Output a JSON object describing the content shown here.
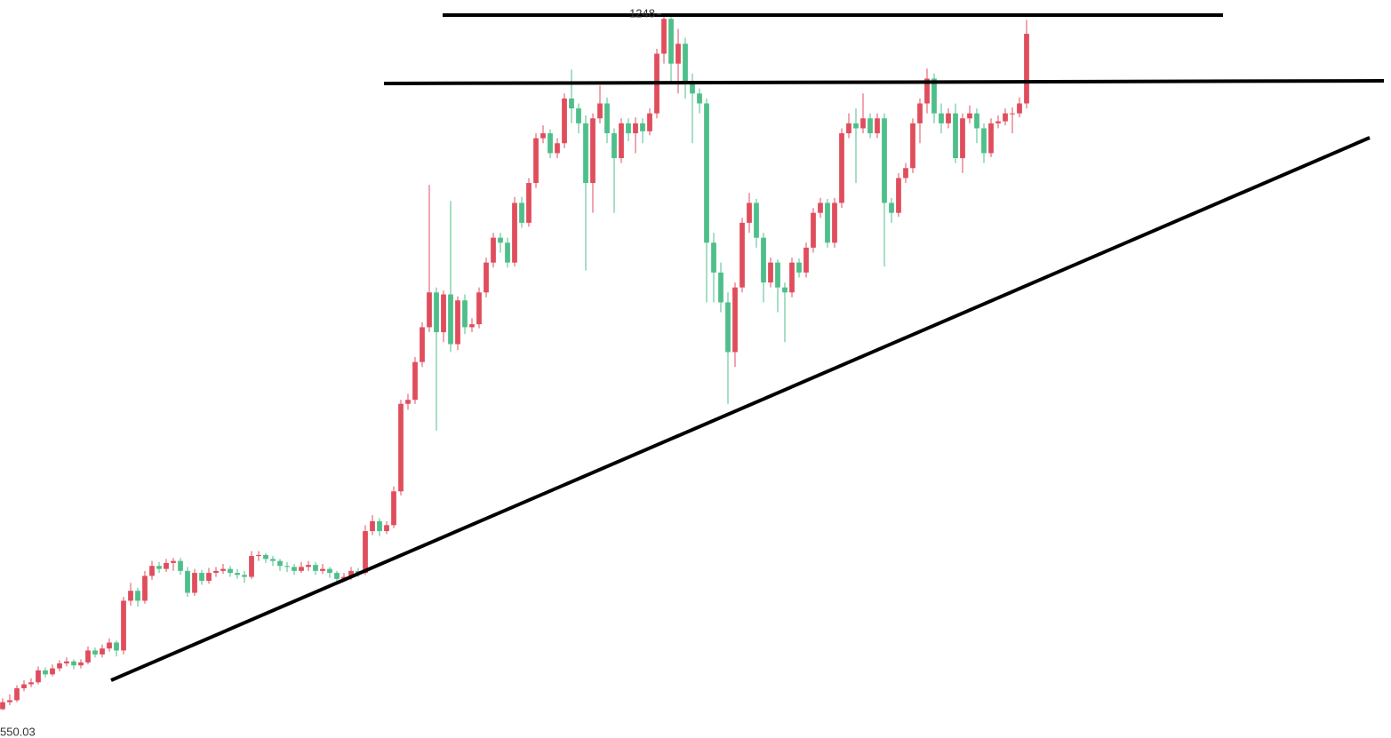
{
  "chart_data": {
    "type": "candlestick",
    "up_color": "#e04d5c",
    "down_color": "#4ebf8a",
    "ylim": [
      522,
      1264
    ],
    "high_label": 1248,
    "low_label": 550.03,
    "candles": [
      [
        551,
        562,
        550.03,
        558
      ],
      [
        558,
        566,
        555,
        560
      ],
      [
        560,
        575,
        558,
        572
      ],
      [
        572,
        580,
        569,
        576
      ],
      [
        576,
        582,
        573,
        578
      ],
      [
        578,
        594,
        576,
        590
      ],
      [
        590,
        593,
        583,
        586
      ],
      [
        586,
        596,
        584,
        592
      ],
      [
        592,
        600,
        589,
        597
      ],
      [
        597,
        603,
        594,
        599
      ],
      [
        599,
        601,
        591,
        595
      ],
      [
        595,
        601,
        592,
        598
      ],
      [
        598,
        614,
        596,
        610
      ],
      [
        610,
        613,
        603,
        606
      ],
      [
        606,
        616,
        603,
        612
      ],
      [
        612,
        622,
        609,
        618
      ],
      [
        618,
        620,
        604,
        610
      ],
      [
        610,
        664,
        606,
        660
      ],
      [
        660,
        678,
        655,
        670
      ],
      [
        670,
        673,
        654,
        660
      ],
      [
        660,
        690,
        657,
        685
      ],
      [
        685,
        700,
        681,
        695
      ],
      [
        695,
        699,
        688,
        692
      ],
      [
        692,
        702,
        689,
        698
      ],
      [
        698,
        703,
        690,
        700
      ],
      [
        700,
        703,
        686,
        690
      ],
      [
        690,
        694,
        664,
        668
      ],
      [
        668,
        692,
        665,
        688
      ],
      [
        688,
        691,
        676,
        680
      ],
      [
        680,
        693,
        677,
        688
      ],
      [
        688,
        694,
        684,
        690
      ],
      [
        690,
        697,
        687,
        692
      ],
      [
        692,
        695,
        684,
        688
      ],
      [
        688,
        692,
        682,
        686
      ],
      [
        686,
        690,
        678,
        684
      ],
      [
        684,
        710,
        682,
        705
      ],
      [
        705,
        710,
        700,
        706
      ],
      [
        706,
        708,
        698,
        702
      ],
      [
        702,
        705,
        695,
        700
      ],
      [
        700,
        702,
        690,
        695
      ],
      [
        695,
        699,
        689,
        694
      ],
      [
        694,
        697,
        686,
        690
      ],
      [
        690,
        699,
        688,
        694
      ],
      [
        694,
        700,
        690,
        696
      ],
      [
        696,
        699,
        686,
        690
      ],
      [
        690,
        697,
        687,
        692
      ],
      [
        692,
        694,
        683,
        688
      ],
      [
        688,
        690,
        676,
        682
      ],
      [
        682,
        688,
        679,
        684
      ],
      [
        684,
        694,
        681,
        690
      ],
      [
        690,
        693,
        684,
        688
      ],
      [
        688,
        736,
        686,
        730
      ],
      [
        730,
        746,
        726,
        740
      ],
      [
        740,
        743,
        725,
        730
      ],
      [
        730,
        740,
        727,
        736
      ],
      [
        736,
        775,
        733,
        770
      ],
      [
        770,
        862,
        766,
        858
      ],
      [
        858,
        868,
        852,
        862
      ],
      [
        862,
        905,
        858,
        900
      ],
      [
        900,
        940,
        895,
        935
      ],
      [
        935,
        1078,
        930,
        970
      ],
      [
        970,
        975,
        831,
        930
      ],
      [
        930,
        972,
        920,
        968
      ],
      [
        968,
        1062,
        910,
        918
      ],
      [
        918,
        966,
        912,
        962
      ],
      [
        962,
        968,
        928,
        935
      ],
      [
        935,
        944,
        930,
        938
      ],
      [
        938,
        975,
        934,
        970
      ],
      [
        970,
        1005,
        965,
        1000
      ],
      [
        1000,
        1030,
        995,
        1025
      ],
      [
        1025,
        1030,
        1010,
        1020
      ],
      [
        1020,
        1025,
        995,
        1000
      ],
      [
        1000,
        1066,
        996,
        1060
      ],
      [
        1060,
        1066,
        1035,
        1040
      ],
      [
        1040,
        1085,
        1036,
        1080
      ],
      [
        1080,
        1130,
        1075,
        1125
      ],
      [
        1125,
        1138,
        1120,
        1130
      ],
      [
        1130,
        1134,
        1105,
        1110
      ],
      [
        1110,
        1125,
        1105,
        1120
      ],
      [
        1120,
        1170,
        1115,
        1165
      ],
      [
        1165,
        1194,
        1140,
        1155
      ],
      [
        1155,
        1160,
        1130,
        1140
      ],
      [
        1140,
        1148,
        992,
        1080
      ],
      [
        1080,
        1150,
        1050,
        1145
      ],
      [
        1145,
        1178,
        1140,
        1160
      ],
      [
        1160,
        1166,
        1120,
        1130
      ],
      [
        1130,
        1135,
        1050,
        1105
      ],
      [
        1105,
        1145,
        1100,
        1140
      ],
      [
        1140,
        1145,
        1122,
        1130
      ],
      [
        1130,
        1146,
        1110,
        1140
      ],
      [
        1140,
        1145,
        1120,
        1132
      ],
      [
        1132,
        1155,
        1128,
        1150
      ],
      [
        1150,
        1215,
        1145,
        1210
      ],
      [
        1210,
        1248,
        1200,
        1245
      ],
      [
        1245,
        1247,
        1180,
        1200
      ],
      [
        1200,
        1235,
        1170,
        1220
      ],
      [
        1220,
        1226,
        1165,
        1180
      ],
      [
        1180,
        1190,
        1120,
        1170
      ],
      [
        1170,
        1175,
        1150,
        1160
      ],
      [
        1160,
        1165,
        960,
        1020
      ],
      [
        1020,
        1030,
        960,
        990
      ],
      [
        990,
        1000,
        950,
        960
      ],
      [
        960,
        970,
        858,
        910
      ],
      [
        910,
        980,
        895,
        975
      ],
      [
        975,
        1045,
        970,
        1040
      ],
      [
        1040,
        1070,
        1030,
        1060
      ],
      [
        1060,
        1064,
        1015,
        1025
      ],
      [
        1025,
        1030,
        960,
        980
      ],
      [
        980,
        1005,
        975,
        1000
      ],
      [
        1000,
        1003,
        950,
        975
      ],
      [
        975,
        980,
        920,
        970
      ],
      [
        970,
        1005,
        965,
        1000
      ],
      [
        1000,
        1004,
        985,
        990
      ],
      [
        990,
        1020,
        985,
        1015
      ],
      [
        1015,
        1055,
        1010,
        1050
      ],
      [
        1050,
        1065,
        1045,
        1060
      ],
      [
        1060,
        1064,
        1015,
        1020
      ],
      [
        1020,
        1065,
        1015,
        1060
      ],
      [
        1060,
        1135,
        1055,
        1130
      ],
      [
        1130,
        1150,
        1125,
        1140
      ],
      [
        1140,
        1155,
        1080,
        1135
      ],
      [
        1135,
        1170,
        1130,
        1145
      ],
      [
        1145,
        1150,
        1125,
        1130
      ],
      [
        1130,
        1150,
        1125,
        1145
      ],
      [
        1145,
        1150,
        996,
        1060
      ],
      [
        1060,
        1065,
        1040,
        1050
      ],
      [
        1050,
        1090,
        1046,
        1085
      ],
      [
        1085,
        1100,
        1080,
        1095
      ],
      [
        1095,
        1145,
        1090,
        1140
      ],
      [
        1140,
        1165,
        1120,
        1160
      ],
      [
        1160,
        1195,
        1150,
        1185
      ],
      [
        1185,
        1190,
        1140,
        1150
      ],
      [
        1150,
        1160,
        1130,
        1140
      ],
      [
        1140,
        1155,
        1135,
        1150
      ],
      [
        1150,
        1160,
        1100,
        1105
      ],
      [
        1105,
        1150,
        1090,
        1145
      ],
      [
        1145,
        1158,
        1140,
        1150
      ],
      [
        1150,
        1155,
        1120,
        1135
      ],
      [
        1135,
        1140,
        1100,
        1110
      ],
      [
        1110,
        1145,
        1106,
        1140
      ],
      [
        1140,
        1148,
        1135,
        1142
      ],
      [
        1142,
        1155,
        1138,
        1150
      ],
      [
        1150,
        1156,
        1130,
        1150
      ],
      [
        1150,
        1166,
        1146,
        1160
      ],
      [
        1160,
        1244,
        1155,
        1230
      ]
    ]
  }
}
